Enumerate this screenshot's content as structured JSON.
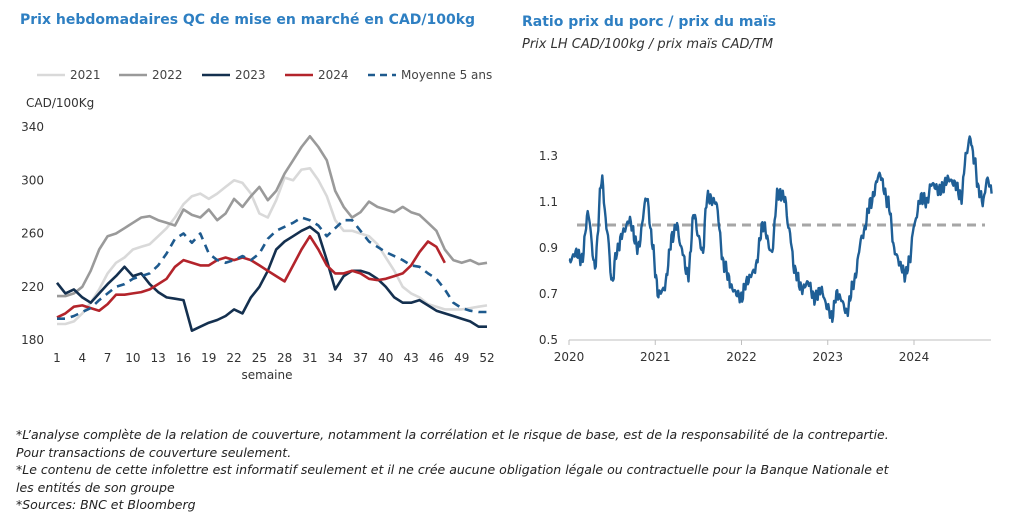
{
  "chart_data": [
    {
      "type": "line",
      "title": "Prix hebdomadaires QC de mise en marché en CAD/100kg",
      "ylabel": "CAD/100Kg",
      "xlabel": "semaine",
      "ylim": [
        180,
        340
      ],
      "yticks": [
        180,
        220,
        260,
        300,
        340
      ],
      "xticks": [
        1,
        4,
        7,
        10,
        13,
        16,
        19,
        22,
        25,
        28,
        31,
        34,
        37,
        40,
        43,
        46,
        49,
        52
      ],
      "legend_position": "top",
      "series": [
        {
          "name": "2021",
          "color": "#d9d9d9",
          "dash": "solid",
          "values": [
            192,
            192,
            194,
            200,
            208,
            218,
            230,
            238,
            242,
            248,
            250,
            252,
            258,
            264,
            272,
            282,
            288,
            290,
            286,
            290,
            295,
            300,
            298,
            290,
            275,
            272,
            285,
            302,
            300,
            308,
            309,
            300,
            288,
            270,
            262,
            262,
            260,
            258,
            252,
            242,
            232,
            220,
            215,
            212,
            207,
            205,
            203,
            203,
            203,
            204,
            205,
            206
          ]
        },
        {
          "name": "2022",
          "color": "#9a9a9a",
          "dash": "solid",
          "values": [
            213,
            213,
            215,
            220,
            232,
            248,
            258,
            260,
            264,
            268,
            272,
            273,
            270,
            268,
            266,
            278,
            274,
            272,
            278,
            270,
            275,
            286,
            280,
            288,
            295,
            285,
            292,
            305,
            315,
            325,
            333,
            325,
            315,
            292,
            280,
            272,
            276,
            284,
            280,
            278,
            276,
            280,
            276,
            274,
            268,
            262,
            248,
            240,
            238,
            240,
            237,
            238
          ]
        },
        {
          "name": "2023",
          "color": "#14304f",
          "dash": "solid",
          "values": [
            223,
            215,
            218,
            212,
            208,
            215,
            222,
            228,
            235,
            228,
            230,
            222,
            216,
            212,
            211,
            210,
            187,
            190,
            193,
            195,
            198,
            203,
            200,
            212,
            220,
            232,
            248,
            254,
            258,
            262,
            265,
            260,
            240,
            218,
            228,
            232,
            232,
            230,
            226,
            220,
            212,
            208,
            208,
            210,
            206,
            202,
            200,
            198,
            196,
            194,
            190,
            190
          ]
        },
        {
          "name": "2024",
          "color": "#b3242b",
          "dash": "solid",
          "values": [
            197,
            200,
            205,
            206,
            204,
            202,
            207,
            214,
            214,
            215,
            216,
            218,
            222,
            226,
            235,
            240,
            238,
            236,
            236,
            240,
            242,
            240,
            242,
            240,
            236,
            232,
            228,
            224,
            236,
            248,
            258,
            248,
            236,
            230,
            230,
            232,
            230,
            226,
            225,
            226,
            228,
            230,
            236,
            246,
            254,
            250,
            238,
            null,
            null,
            null,
            null,
            null
          ]
        },
        {
          "name": "Moyenne 5 ans",
          "color": "#1e5a8e",
          "dash": "dashed",
          "values": [
            196,
            196,
            198,
            201,
            204,
            210,
            215,
            220,
            222,
            226,
            228,
            230,
            236,
            245,
            256,
            260,
            253,
            260,
            245,
            240,
            238,
            240,
            243,
            240,
            245,
            256,
            262,
            265,
            268,
            272,
            270,
            266,
            258,
            264,
            270,
            270,
            262,
            254,
            250,
            246,
            243,
            240,
            236,
            235,
            230,
            226,
            218,
            208,
            204,
            202,
            201,
            201
          ]
        }
      ]
    },
    {
      "type": "line",
      "title": "Ratio prix du porc / prix du maïs",
      "subtitle": "Prix LH CAD/100kg / prix maïs CAD/TM",
      "ylim": [
        0.5,
        1.4
      ],
      "yticks": [
        "0.5",
        "0.7",
        "0.9",
        "1.1",
        "1.3"
      ],
      "xlim": [
        2020,
        2024.9
      ],
      "xticks": [
        "2020",
        "2021",
        "2022",
        "2023",
        "2024"
      ],
      "reference_line": {
        "value": 1.0,
        "color": "#a6a6a6",
        "dash": "dashed"
      },
      "series": [
        {
          "name": "",
          "color": "#1f5f96",
          "x": [
            2020.0,
            2020.08,
            2020.15,
            2020.22,
            2020.3,
            2020.38,
            2020.44,
            2020.5,
            2020.55,
            2020.63,
            2020.7,
            2020.8,
            2020.9,
            2020.97,
            2021.0,
            2021.03,
            2021.1,
            2021.2,
            2021.25,
            2021.3,
            2021.38,
            2021.45,
            2021.5,
            2021.55,
            2021.6,
            2021.7,
            2021.8,
            2021.9,
            2021.95,
            2022.0,
            2022.05,
            2022.15,
            2022.25,
            2022.35,
            2022.42,
            2022.5,
            2022.55,
            2022.62,
            2022.7,
            2022.77,
            2022.85,
            2022.92,
            2023.0,
            2023.05,
            2023.1,
            2023.15,
            2023.22,
            2023.3,
            2023.4,
            2023.5,
            2023.6,
            2023.7,
            2023.78,
            2023.85,
            2023.9,
            2023.95,
            2024.0,
            2024.08,
            2024.15,
            2024.2,
            2024.3,
            2024.4,
            2024.47,
            2024.55,
            2024.6,
            2024.65,
            2024.7,
            2024.75,
            2024.8,
            2024.85,
            2024.9
          ],
          "values": [
            0.84,
            0.88,
            0.85,
            1.05,
            0.82,
            1.2,
            0.98,
            0.75,
            0.88,
            0.97,
            1.02,
            0.9,
            1.12,
            0.92,
            0.8,
            0.7,
            0.72,
            0.95,
            1.0,
            0.9,
            0.78,
            1.05,
            0.95,
            0.88,
            1.12,
            1.1,
            0.82,
            0.72,
            0.7,
            0.68,
            0.75,
            0.8,
            1.0,
            0.88,
            1.14,
            1.12,
            0.98,
            0.8,
            0.72,
            0.75,
            0.68,
            0.72,
            0.64,
            0.6,
            0.7,
            0.68,
            0.62,
            0.75,
            0.95,
            1.1,
            1.22,
            1.1,
            0.88,
            0.82,
            0.78,
            0.85,
            1.0,
            1.12,
            1.1,
            1.18,
            1.15,
            1.2,
            1.18,
            1.12,
            1.3,
            1.38,
            1.28,
            1.15,
            1.1,
            1.2,
            1.15
          ]
        }
      ]
    }
  ],
  "notes": [
    "*L’analyse complète de la relation de couverture, notamment la corrélation et le risque de base, est de la responsabilité de la contrepartie.",
    "Pour transactions de couverture seulement.",
    "*Le contenu de cette infolettre est informatif seulement et il ne crée aucune obligation légale ou contractuelle pour la Banque Nationale et",
    "les entités de son groupe",
    "*Sources: BNC et Bloomberg"
  ]
}
